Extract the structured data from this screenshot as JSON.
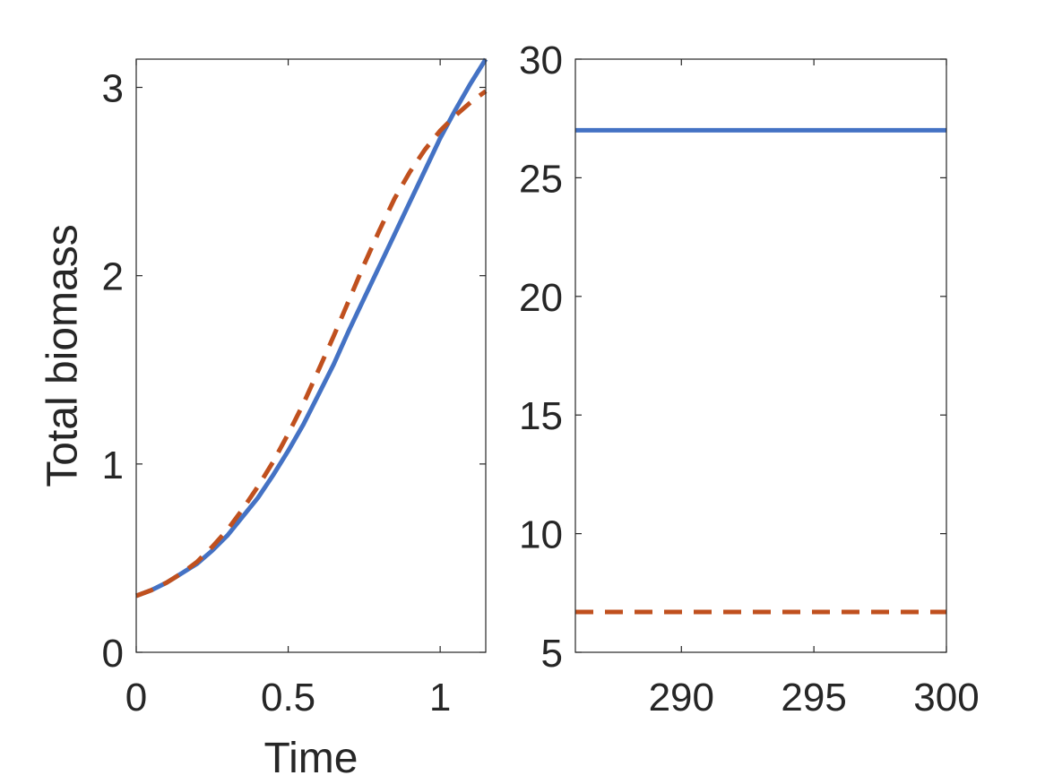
{
  "chart_data": [
    {
      "type": "line",
      "xlabel": "Time",
      "ylabel": "Total biomass",
      "xlim": [
        0,
        1.15
      ],
      "ylim": [
        0,
        3.15
      ],
      "xticks": [
        0,
        0.5,
        1
      ],
      "xtick_labels": [
        "0",
        "0.5",
        "1"
      ],
      "yticks": [
        0,
        1,
        2,
        3
      ],
      "ytick_labels": [
        "0",
        "1",
        "2",
        "3"
      ],
      "grid": false,
      "series": [
        {
          "style": "solid",
          "color": "#4472C4",
          "x": [
            0,
            0.05,
            0.1,
            0.15,
            0.2,
            0.25,
            0.3,
            0.35,
            0.4,
            0.45,
            0.5,
            0.55,
            0.6,
            0.65,
            0.7,
            0.75,
            0.8,
            0.85,
            0.9,
            0.95,
            1.0,
            1.05,
            1.1,
            1.15
          ],
          "y": [
            0.3,
            0.33,
            0.37,
            0.42,
            0.47,
            0.54,
            0.62,
            0.72,
            0.82,
            0.94,
            1.07,
            1.21,
            1.37,
            1.53,
            1.71,
            1.88,
            2.05,
            2.22,
            2.39,
            2.56,
            2.73,
            2.88,
            3.02,
            3.15
          ]
        },
        {
          "style": "dashed",
          "color": "#C0501E",
          "x": [
            0,
            0.05,
            0.1,
            0.15,
            0.2,
            0.25,
            0.3,
            0.35,
            0.4,
            0.45,
            0.5,
            0.55,
            0.6,
            0.65,
            0.7,
            0.75,
            0.8,
            0.85,
            0.9,
            0.95,
            1.0,
            1.05,
            1.1,
            1.15
          ],
          "y": [
            0.3,
            0.33,
            0.37,
            0.42,
            0.48,
            0.56,
            0.65,
            0.76,
            0.88,
            1.01,
            1.16,
            1.32,
            1.5,
            1.68,
            1.87,
            2.06,
            2.24,
            2.41,
            2.55,
            2.67,
            2.77,
            2.85,
            2.92,
            2.98
          ]
        }
      ]
    },
    {
      "type": "line",
      "xlabel": "",
      "ylabel": "",
      "xlim": [
        286,
        300
      ],
      "ylim": [
        5,
        30
      ],
      "xticks": [
        290,
        295,
        300
      ],
      "xtick_labels": [
        "290",
        "295",
        "300"
      ],
      "yticks": [
        5,
        10,
        15,
        20,
        25,
        30
      ],
      "ytick_labels": [
        "5",
        "10",
        "15",
        "20",
        "25",
        "30"
      ],
      "grid": false,
      "series": [
        {
          "style": "solid",
          "color": "#4472C4",
          "x": [
            286,
            300
          ],
          "y": [
            27.0,
            27.0
          ]
        },
        {
          "style": "dashed",
          "color": "#C0501E",
          "x": [
            286,
            300
          ],
          "y": [
            6.7,
            6.7
          ]
        }
      ]
    }
  ]
}
